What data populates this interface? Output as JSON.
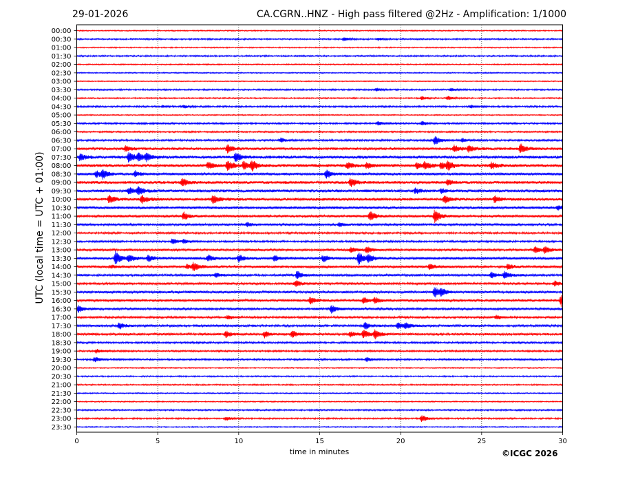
{
  "header": {
    "date": "29-01-2026",
    "title": "CA.CGRN..HNZ - High pass filtered @2Hz - Amplification: 1/1000"
  },
  "footer": {
    "copyright": "©ICGC 2026"
  },
  "chart_data": {
    "type": "seismogram",
    "title": "CA.CGRN..HNZ - High pass filtered @2Hz - Amplification: 1/1000",
    "date": "29-01-2026",
    "xlabel": "time in minutes",
    "ylabel": "UTC (local time = UTC + 01:00)",
    "xlim": [
      0,
      30
    ],
    "xticks": [
      0,
      5,
      10,
      15,
      20,
      25,
      30
    ],
    "vertical_grid_at": [
      5,
      10,
      15,
      20,
      25
    ],
    "row_labels": [
      "00:00",
      "00:30",
      "01:00",
      "01:30",
      "02:00",
      "02:30",
      "03:00",
      "03:30",
      "04:00",
      "04:30",
      "05:00",
      "05:30",
      "06:00",
      "06:30",
      "07:00",
      "07:30",
      "08:00",
      "08:30",
      "09:00",
      "09:30",
      "10:00",
      "10:30",
      "11:00",
      "11:30",
      "12:00",
      "12:30",
      "13:00",
      "13:30",
      "14:00",
      "14:30",
      "15:00",
      "15:30",
      "16:00",
      "16:30",
      "17:00",
      "17:30",
      "18:00",
      "18:30",
      "19:00",
      "19:30",
      "20:00",
      "20:30",
      "21:00",
      "21:30",
      "22:00",
      "22:30",
      "23:00",
      "23:30"
    ],
    "trace_colors": [
      "#ff0000",
      "#0000ff"
    ],
    "noise_level": [
      0.6,
      0.8,
      0.6,
      0.8,
      0.6,
      0.6,
      0.5,
      0.8,
      0.7,
      0.9,
      0.6,
      0.9,
      0.8,
      1.0,
      1.4,
      1.6,
      1.6,
      1.4,
      1.5,
      1.5,
      1.5,
      1.4,
      1.3,
      1.2,
      1.0,
      1.0,
      1.2,
      1.4,
      1.3,
      1.2,
      1.2,
      1.3,
      1.3,
      1.2,
      1.1,
      1.2,
      1.2,
      1.0,
      0.9,
      0.9,
      0.6,
      0.7,
      0.7,
      0.6,
      0.6,
      0.8,
      0.8,
      0.6
    ],
    "events": [
      {
        "row": "00:30",
        "minute": 16.5,
        "amplitude": 2.5
      },
      {
        "row": "00:30",
        "minute": 18.6,
        "amplitude": 2
      },
      {
        "row": "03:30",
        "minute": 18.5,
        "amplitude": 2
      },
      {
        "row": "03:30",
        "minute": 23.1,
        "amplitude": 2
      },
      {
        "row": "04:00",
        "minute": 21.3,
        "amplitude": 2.5
      },
      {
        "row": "04:00",
        "minute": 22.9,
        "amplitude": 3
      },
      {
        "row": "04:30",
        "minute": 5.3,
        "amplitude": 1.5
      },
      {
        "row": "04:30",
        "minute": 6.6,
        "amplitude": 2
      },
      {
        "row": "04:30",
        "minute": 24.3,
        "amplitude": 2
      },
      {
        "row": "05:30",
        "minute": 18.6,
        "amplitude": 3
      },
      {
        "row": "05:30",
        "minute": 21.3,
        "amplitude": 3
      },
      {
        "row": "06:30",
        "minute": 12.6,
        "amplitude": 3
      },
      {
        "row": "06:30",
        "minute": 22.1,
        "amplitude": 7
      },
      {
        "row": "06:30",
        "minute": 23.8,
        "amplitude": 2.5
      },
      {
        "row": "07:00",
        "minute": 3.0,
        "amplitude": 4
      },
      {
        "row": "07:00",
        "minute": 9.3,
        "amplitude": 6
      },
      {
        "row": "07:00",
        "minute": 23.3,
        "amplitude": 5
      },
      {
        "row": "07:00",
        "minute": 24.2,
        "amplitude": 5
      },
      {
        "row": "07:00",
        "minute": 27.4,
        "amplitude": 7
      },
      {
        "row": "07:30",
        "minute": 0.2,
        "amplitude": 5
      },
      {
        "row": "07:30",
        "minute": 3.2,
        "amplitude": 8
      },
      {
        "row": "07:30",
        "minute": 3.8,
        "amplitude": 6
      },
      {
        "row": "07:30",
        "minute": 4.3,
        "amplitude": 5
      },
      {
        "row": "07:30",
        "minute": 9.8,
        "amplitude": 7
      },
      {
        "row": "08:00",
        "minute": 8.1,
        "amplitude": 5
      },
      {
        "row": "08:00",
        "minute": 9.3,
        "amplitude": 8
      },
      {
        "row": "08:00",
        "minute": 10.3,
        "amplitude": 6
      },
      {
        "row": "08:00",
        "minute": 10.8,
        "amplitude": 7
      },
      {
        "row": "08:00",
        "minute": 16.7,
        "amplitude": 5
      },
      {
        "row": "08:00",
        "minute": 17.9,
        "amplitude": 4
      },
      {
        "row": "08:00",
        "minute": 21.0,
        "amplitude": 5
      },
      {
        "row": "08:00",
        "minute": 21.5,
        "amplitude": 5
      },
      {
        "row": "08:00",
        "minute": 22.5,
        "amplitude": 5
      },
      {
        "row": "08:00",
        "minute": 22.9,
        "amplitude": 6
      },
      {
        "row": "08:00",
        "minute": 25.6,
        "amplitude": 5
      },
      {
        "row": "08:30",
        "minute": 1.2,
        "amplitude": 5
      },
      {
        "row": "08:30",
        "minute": 1.6,
        "amplitude": 6
      },
      {
        "row": "08:30",
        "minute": 3.6,
        "amplitude": 4
      },
      {
        "row": "08:30",
        "minute": 15.4,
        "amplitude": 6
      },
      {
        "row": "09:00",
        "minute": 6.5,
        "amplitude": 6
      },
      {
        "row": "09:00",
        "minute": 16.9,
        "amplitude": 7
      },
      {
        "row": "09:00",
        "minute": 22.9,
        "amplitude": 4
      },
      {
        "row": "09:30",
        "minute": 3.2,
        "amplitude": 5
      },
      {
        "row": "09:30",
        "minute": 3.8,
        "amplitude": 6
      },
      {
        "row": "09:30",
        "minute": 20.9,
        "amplitude": 4
      },
      {
        "row": "09:30",
        "minute": 22.5,
        "amplitude": 3
      },
      {
        "row": "10:00",
        "minute": 2.0,
        "amplitude": 6
      },
      {
        "row": "10:00",
        "minute": 4.0,
        "amplitude": 6
      },
      {
        "row": "10:00",
        "minute": 8.4,
        "amplitude": 7
      },
      {
        "row": "10:00",
        "minute": 22.7,
        "amplitude": 6
      },
      {
        "row": "10:00",
        "minute": 25.8,
        "amplitude": 5
      },
      {
        "row": "10:30",
        "minute": 29.7,
        "amplitude": 3
      },
      {
        "row": "11:00",
        "minute": 6.6,
        "amplitude": 6
      },
      {
        "row": "11:00",
        "minute": 18.1,
        "amplitude": 8
      },
      {
        "row": "11:00",
        "minute": 22.1,
        "amplitude": 10
      },
      {
        "row": "11:30",
        "minute": 10.5,
        "amplitude": 3
      },
      {
        "row": "11:30",
        "minute": 16.2,
        "amplitude": 3
      },
      {
        "row": "12:30",
        "minute": 5.9,
        "amplitude": 4
      },
      {
        "row": "12:30",
        "minute": 6.6,
        "amplitude": 3
      },
      {
        "row": "13:00",
        "minute": 16.9,
        "amplitude": 4
      },
      {
        "row": "13:00",
        "minute": 17.9,
        "amplitude": 5
      },
      {
        "row": "13:00",
        "minute": 28.3,
        "amplitude": 5
      },
      {
        "row": "13:00",
        "minute": 28.9,
        "amplitude": 5
      },
      {
        "row": "13:30",
        "minute": 2.4,
        "amplitude": 10
      },
      {
        "row": "13:30",
        "minute": 3.2,
        "amplitude": 5
      },
      {
        "row": "13:30",
        "minute": 4.4,
        "amplitude": 5
      },
      {
        "row": "13:30",
        "minute": 8.1,
        "amplitude": 5
      },
      {
        "row": "13:30",
        "minute": 10.0,
        "amplitude": 5
      },
      {
        "row": "13:30",
        "minute": 12.2,
        "amplitude": 4
      },
      {
        "row": "13:30",
        "minute": 15.2,
        "amplitude": 5
      },
      {
        "row": "13:30",
        "minute": 17.4,
        "amplitude": 10
      },
      {
        "row": "13:30",
        "minute": 18.0,
        "amplitude": 5
      },
      {
        "row": "14:00",
        "minute": 2.1,
        "amplitude": 2
      },
      {
        "row": "14:00",
        "minute": 6.8,
        "amplitude": 3
      },
      {
        "row": "14:00",
        "minute": 7.2,
        "amplitude": 6
      },
      {
        "row": "14:00",
        "minute": 21.8,
        "amplitude": 4
      },
      {
        "row": "14:00",
        "minute": 26.6,
        "amplitude": 4
      },
      {
        "row": "14:30",
        "minute": 8.6,
        "amplitude": 3
      },
      {
        "row": "14:30",
        "minute": 13.6,
        "amplitude": 6
      },
      {
        "row": "14:30",
        "minute": 25.6,
        "amplitude": 4
      },
      {
        "row": "14:30",
        "minute": 26.4,
        "amplitude": 6
      },
      {
        "row": "15:00",
        "minute": 13.5,
        "amplitude": 5
      },
      {
        "row": "15:00",
        "minute": 29.5,
        "amplitude": 4
      },
      {
        "row": "15:30",
        "minute": 22.1,
        "amplitude": 8
      },
      {
        "row": "15:30",
        "minute": 22.5,
        "amplitude": 4
      },
      {
        "row": "16:00",
        "minute": 14.4,
        "amplitude": 5
      },
      {
        "row": "16:00",
        "minute": 17.7,
        "amplitude": 5
      },
      {
        "row": "16:00",
        "minute": 18.4,
        "amplitude": 4
      },
      {
        "row": "16:00",
        "minute": 29.9,
        "amplitude": 9
      },
      {
        "row": "16:30",
        "minute": 0.1,
        "amplitude": 5
      },
      {
        "row": "16:30",
        "minute": 15.7,
        "amplitude": 6
      },
      {
        "row": "17:00",
        "minute": 9.3,
        "amplitude": 3
      },
      {
        "row": "17:00",
        "minute": 25.9,
        "amplitude": 3
      },
      {
        "row": "17:30",
        "minute": 2.6,
        "amplitude": 5
      },
      {
        "row": "17:30",
        "minute": 17.8,
        "amplitude": 5
      },
      {
        "row": "17:30",
        "minute": 19.8,
        "amplitude": 5
      },
      {
        "row": "17:30",
        "minute": 20.3,
        "amplitude": 4
      },
      {
        "row": "18:00",
        "minute": 9.2,
        "amplitude": 5
      },
      {
        "row": "18:00",
        "minute": 11.6,
        "amplitude": 5
      },
      {
        "row": "18:00",
        "minute": 13.3,
        "amplitude": 5
      },
      {
        "row": "18:00",
        "minute": 16.9,
        "amplitude": 4
      },
      {
        "row": "18:00",
        "minute": 17.7,
        "amplitude": 6
      },
      {
        "row": "18:00",
        "minute": 18.4,
        "amplitude": 7
      },
      {
        "row": "19:00",
        "minute": 1.2,
        "amplitude": 3
      },
      {
        "row": "19:30",
        "minute": 1.1,
        "amplitude": 4
      },
      {
        "row": "19:30",
        "minute": 17.9,
        "amplitude": 3
      },
      {
        "row": "23:00",
        "minute": 9.2,
        "amplitude": 3
      },
      {
        "row": "23:00",
        "minute": 21.3,
        "amplitude": 5
      }
    ]
  }
}
